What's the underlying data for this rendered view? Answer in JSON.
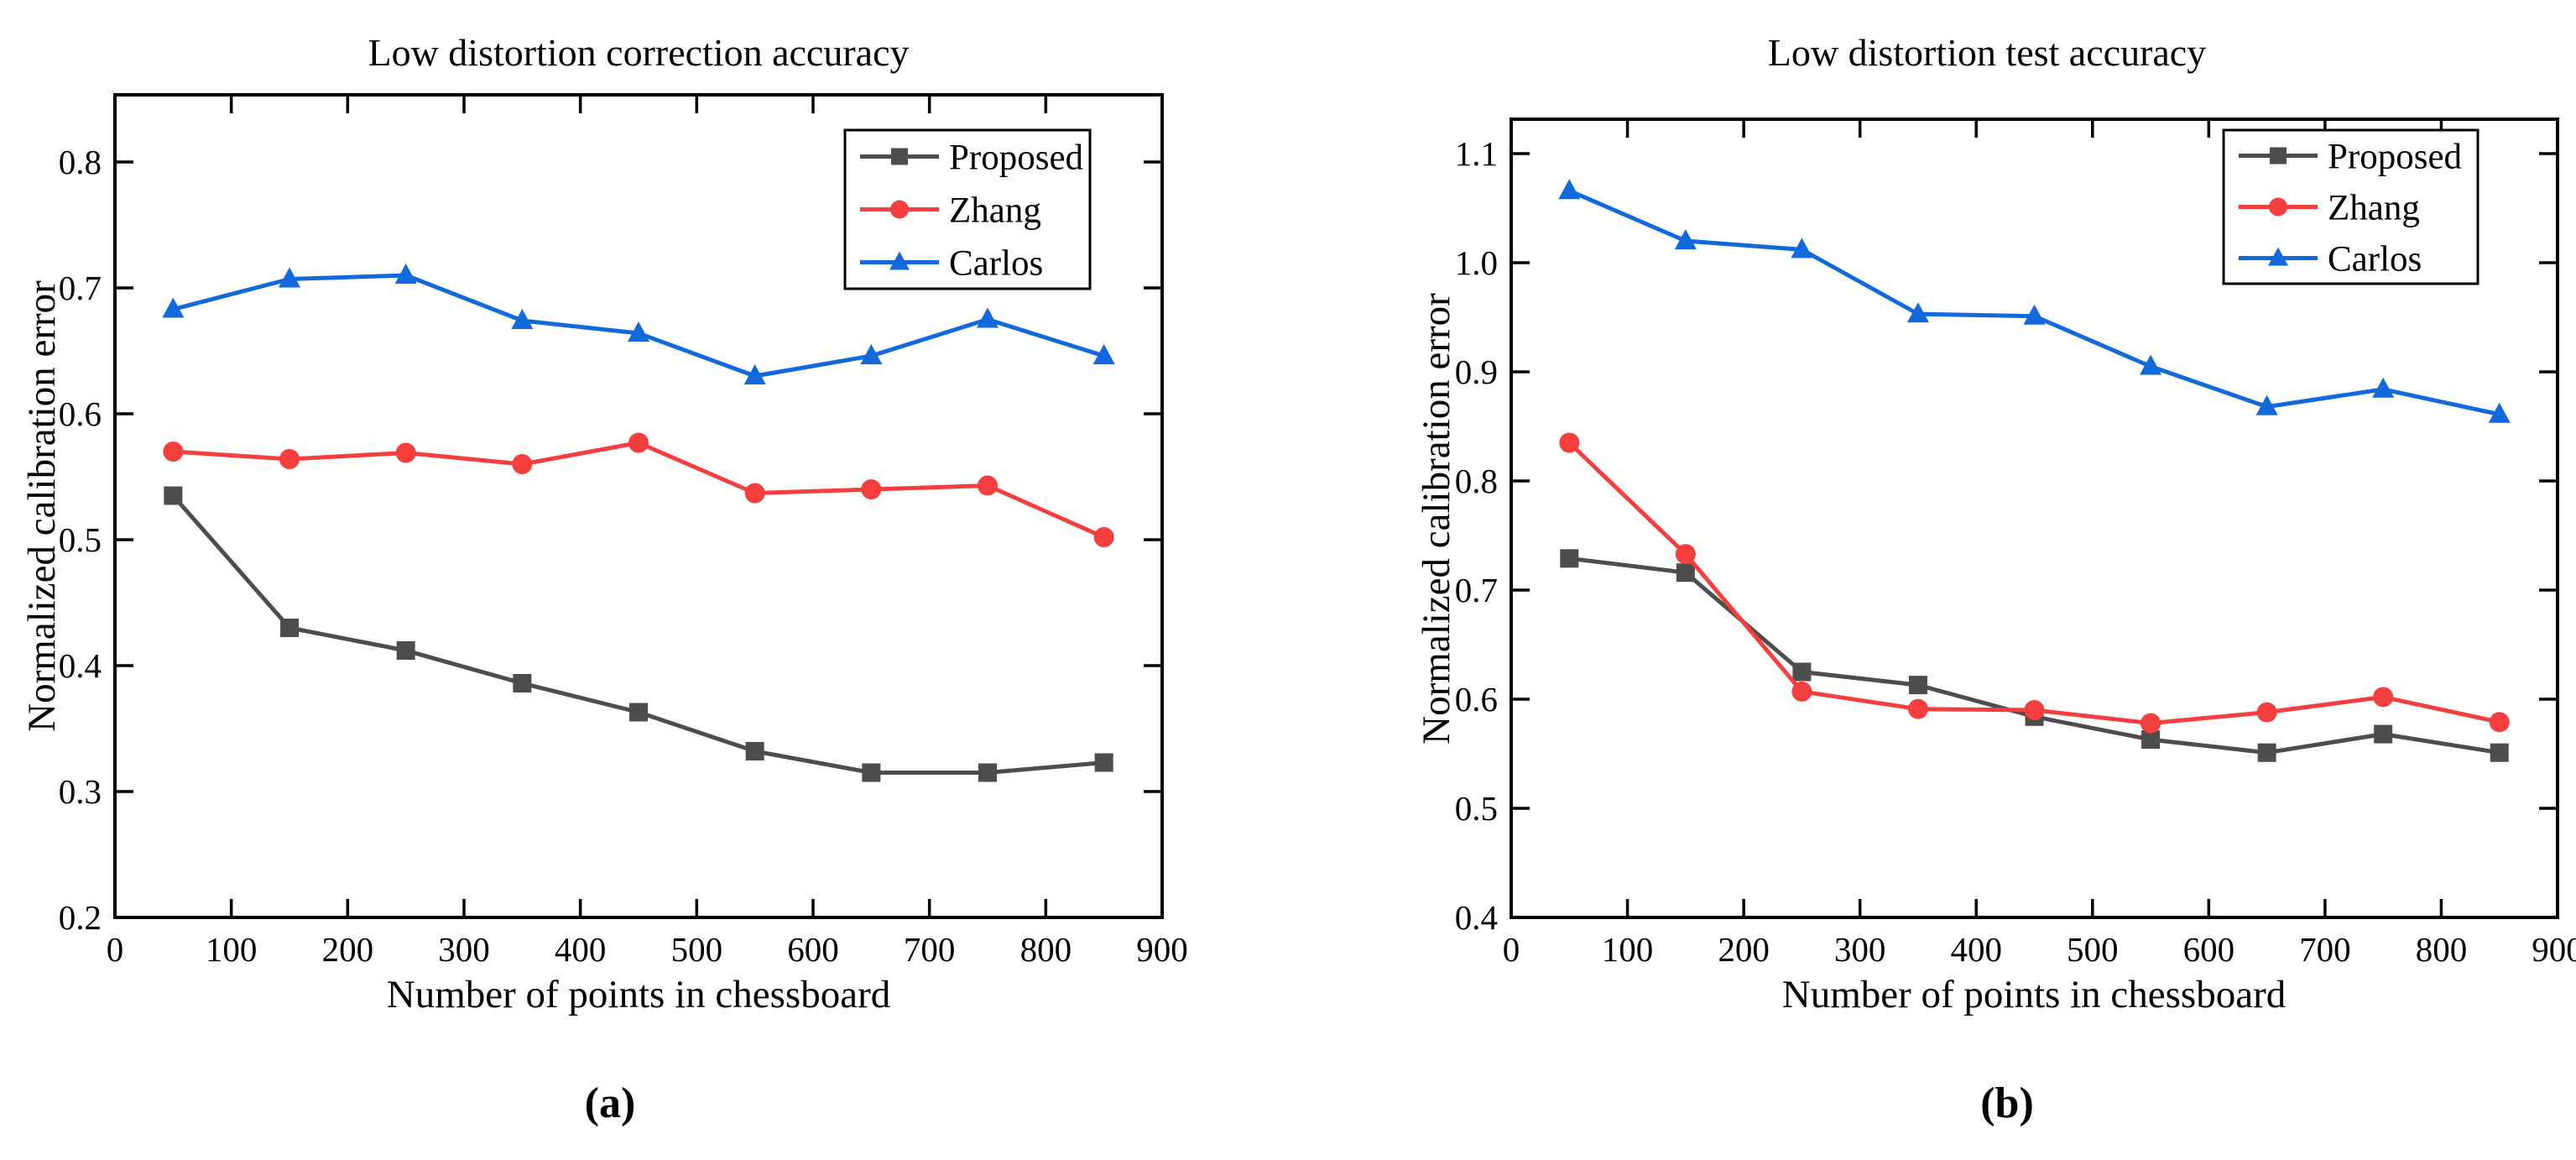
{
  "chart_data": [
    {
      "type": "line",
      "title": "Low distortion correction accuracy",
      "caption": "(a)",
      "xlabel": "Number of points in chessboard",
      "ylabel": "Normalized calibration error",
      "x": [
        50,
        150,
        250,
        350,
        450,
        550,
        650,
        750,
        850
      ],
      "xticks": [
        "0",
        "100",
        "200",
        "300",
        "400",
        "500",
        "600",
        "700",
        "800",
        "900"
      ],
      "yticks": [
        "0.2",
        "0.3",
        "0.4",
        "0.5",
        "0.6",
        "0.7",
        "0.8"
      ],
      "xlim": [
        0,
        900
      ],
      "ylim": [
        0.2,
        0.853
      ],
      "grid": false,
      "legend_position": "upper right",
      "series": [
        {
          "name": "Proposed",
          "color": "#4D4D4D",
          "marker": "square",
          "values": [
            0.535,
            0.43,
            0.412,
            0.386,
            0.363,
            0.332,
            0.315,
            0.315,
            0.323
          ]
        },
        {
          "name": "Zhang",
          "color": "#F53E3E",
          "marker": "circle",
          "values": [
            0.57,
            0.564,
            0.569,
            0.56,
            0.577,
            0.537,
            0.54,
            0.543,
            0.502
          ]
        },
        {
          "name": "Carlos",
          "color": "#1269DB",
          "marker": "triangle",
          "values": [
            0.683,
            0.707,
            0.71,
            0.674,
            0.664,
            0.63,
            0.646,
            0.675,
            0.646
          ]
        }
      ]
    },
    {
      "type": "line",
      "title": "Low distortion test accuracy",
      "caption": "(b)",
      "xlabel": "Number of points in chessboard",
      "ylabel": "Normalized calibration error",
      "x": [
        50,
        150,
        250,
        350,
        450,
        550,
        650,
        750,
        850
      ],
      "xticks": [
        "0",
        "100",
        "200",
        "300",
        "400",
        "500",
        "600",
        "700",
        "800",
        "900"
      ],
      "yticks": [
        "0.4",
        "0.5",
        "0.6",
        "0.7",
        "0.8",
        "0.9",
        "1.0",
        "1.1"
      ],
      "xlim": [
        0,
        900
      ],
      "ylim": [
        0.4,
        1.132
      ],
      "grid": false,
      "legend_position": "upper right",
      "series": [
        {
          "name": "Proposed",
          "color": "#4D4D4D",
          "marker": "square",
          "values": [
            0.729,
            0.716,
            0.625,
            0.613,
            0.584,
            0.563,
            0.551,
            0.568,
            0.551
          ]
        },
        {
          "name": "Zhang",
          "color": "#F53E3E",
          "marker": "circle",
          "values": [
            0.835,
            0.733,
            0.607,
            0.591,
            0.59,
            0.578,
            0.588,
            0.602,
            0.579
          ]
        },
        {
          "name": "Carlos",
          "color": "#1269DB",
          "marker": "triangle",
          "values": [
            1.066,
            1.02,
            1.012,
            0.953,
            0.951,
            0.905,
            0.868,
            0.884,
            0.861
          ]
        }
      ]
    }
  ]
}
